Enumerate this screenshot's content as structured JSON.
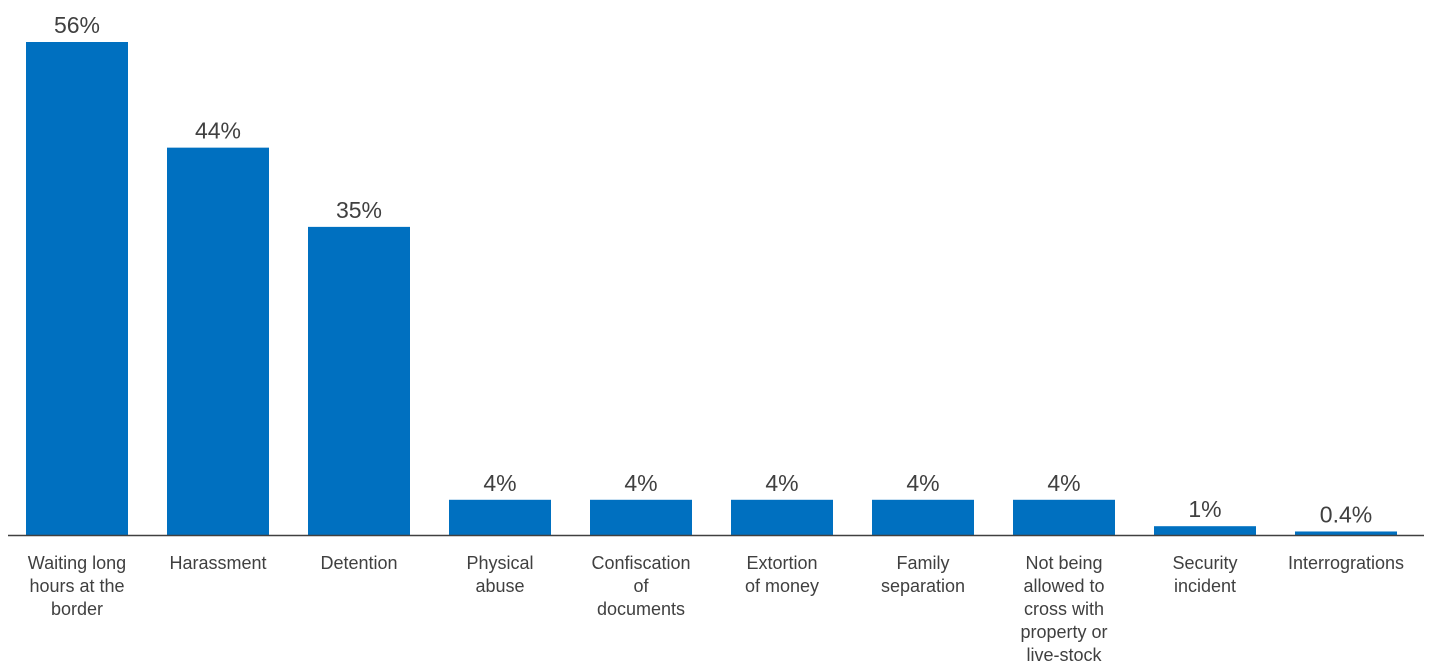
{
  "chart_data": {
    "type": "bar",
    "categories": [
      [
        "Waiting long",
        "hours at the",
        "border"
      ],
      [
        "Harassment"
      ],
      [
        "Detention"
      ],
      [
        "Physical",
        "abuse"
      ],
      [
        "Confiscation",
        "of",
        "documents"
      ],
      [
        "Extortion",
        "of money"
      ],
      [
        "Family",
        "separation"
      ],
      [
        "Not being",
        "allowed to",
        "cross with",
        "property or",
        "live-stock"
      ],
      [
        "Security",
        "incident"
      ],
      [
        "Interrogrations"
      ]
    ],
    "values": [
      56,
      44,
      35,
      4,
      4,
      4,
      4,
      4,
      1,
      0.4
    ],
    "value_labels": [
      "56%",
      "44%",
      "35%",
      "4%",
      "4%",
      "4%",
      "4%",
      "4%",
      "1%",
      "0.4%"
    ],
    "ylim": [
      0,
      60
    ],
    "grid": false,
    "legend": "none"
  },
  "colors": {
    "bar": "#0070C0",
    "baseline": "#404040",
    "text": "#404040"
  }
}
